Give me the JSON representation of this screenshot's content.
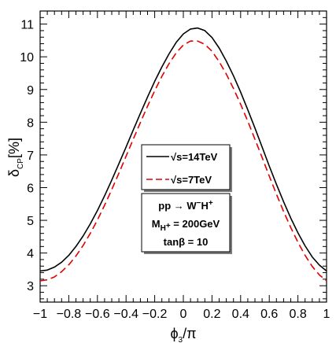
{
  "chart_data": {
    "type": "line",
    "xlabel": "ϕ3/π",
    "ylabel": "δCP[%]",
    "xlim": [
      -1,
      1
    ],
    "ylim": [
      2.5,
      11.4
    ],
    "x_ticks": [
      "−1",
      "−0.8",
      "−0.6",
      "−0.4",
      "−0.2",
      "0",
      "0.2",
      "0.4",
      "0.6",
      "0.8",
      "1"
    ],
    "y_ticks": [
      "3",
      "4",
      "5",
      "6",
      "7",
      "8",
      "9",
      "10",
      "11"
    ],
    "x": [
      -1.0,
      -0.95,
      -0.9,
      -0.85,
      -0.8,
      -0.75,
      -0.7,
      -0.65,
      -0.6,
      -0.55,
      -0.5,
      -0.45,
      -0.4,
      -0.35,
      -0.3,
      -0.25,
      -0.2,
      -0.15,
      -0.1,
      -0.05,
      0.0,
      0.05,
      0.1,
      0.15,
      0.2,
      0.25,
      0.3,
      0.35,
      0.4,
      0.45,
      0.5,
      0.55,
      0.6,
      0.65,
      0.7,
      0.75,
      0.8,
      0.85,
      0.9,
      0.95,
      1.0
    ],
    "series": [
      {
        "name": "√s=14TeV",
        "color": "#000000",
        "dash": "solid",
        "values": [
          3.45,
          3.48,
          3.57,
          3.72,
          3.93,
          4.2,
          4.52,
          4.89,
          5.3,
          5.75,
          6.23,
          6.73,
          7.24,
          7.76,
          8.27,
          8.77,
          9.25,
          9.69,
          10.09,
          10.44,
          10.7,
          10.85,
          10.88,
          10.8,
          10.59,
          10.27,
          9.87,
          9.42,
          8.92,
          8.38,
          7.82,
          7.24,
          6.66,
          6.1,
          5.57,
          5.07,
          4.62,
          4.22,
          3.88,
          3.63,
          3.45
        ]
      },
      {
        "name": "√s=7TeV",
        "color": "#e00000",
        "dash": "dashed",
        "values": [
          3.15,
          3.18,
          3.27,
          3.43,
          3.64,
          3.91,
          4.23,
          4.6,
          5.01,
          5.46,
          5.94,
          6.44,
          6.96,
          7.48,
          7.99,
          8.49,
          8.96,
          9.4,
          9.79,
          10.12,
          10.36,
          10.48,
          10.48,
          10.38,
          10.17,
          9.85,
          9.47,
          9.03,
          8.55,
          8.03,
          7.48,
          6.92,
          6.35,
          5.8,
          5.27,
          4.78,
          4.33,
          3.93,
          3.59,
          3.33,
          3.15
        ]
      }
    ],
    "process": {
      "pp": "pp",
      "arrow": "→",
      "w": "W",
      "w_sup": "−",
      "h": "H",
      "h_sup": "+"
    },
    "mass": {
      "m": "M",
      "sub_h": "H",
      "sub_sup": "+",
      "value": " = 200GeV"
    },
    "tanb": "tanβ = 10",
    "grid": false,
    "legend_position": "center"
  }
}
